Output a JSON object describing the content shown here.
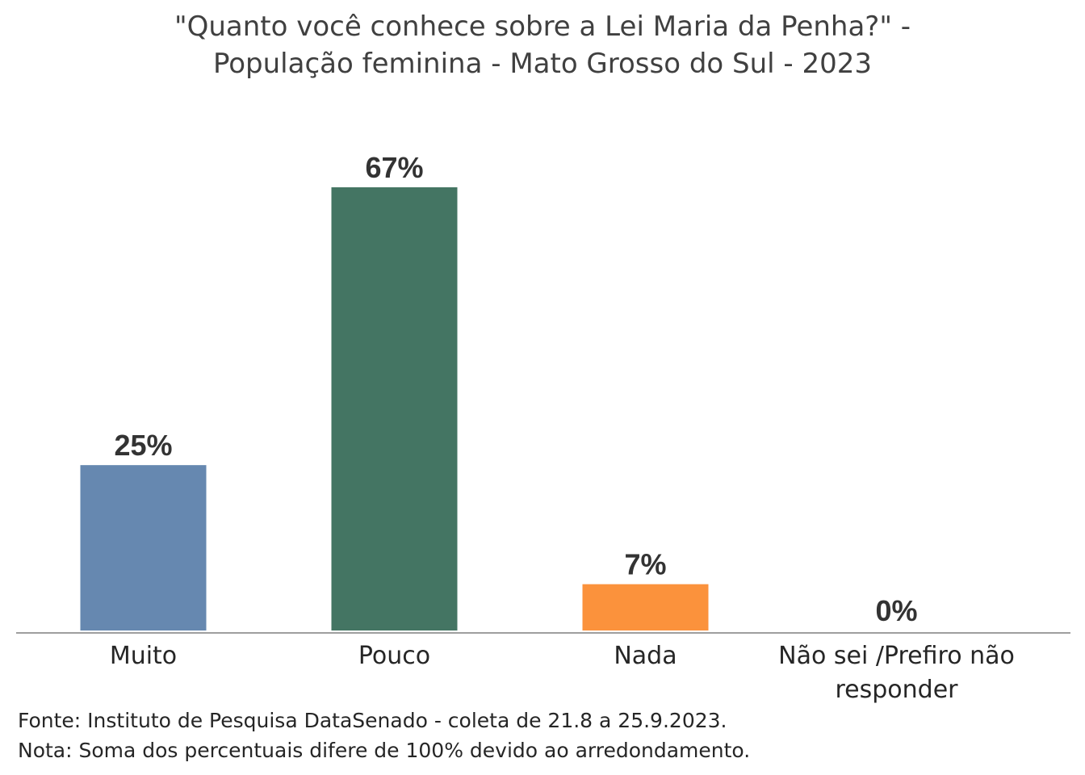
{
  "chart_data": {
    "type": "bar",
    "title_lines": [
      "\"Quanto você conhece sobre a Lei Maria da Penha?\" -",
      "População feminina - Mato Grosso do Sul - 2023"
    ],
    "categories": [
      "Muito",
      "Pouco",
      "Nada",
      "Não sei /Prefiro não responder"
    ],
    "category_lines": [
      [
        "Muito"
      ],
      [
        "Pouco"
      ],
      [
        "Nada"
      ],
      [
        "Não sei /Prefiro não",
        "responder"
      ]
    ],
    "values": [
      25,
      67,
      7,
      0
    ],
    "data_labels": [
      "25%",
      "67%",
      "7%",
      "0%"
    ],
    "bar_colors": [
      "#6688B0",
      "#447563",
      "#FB923C",
      "#9E9E9E"
    ],
    "ylim": [
      0,
      67
    ],
    "y_axis_visible": false,
    "grid": false,
    "legend": "none"
  },
  "footnotes": {
    "source": "Fonte: Instituto de Pesquisa DataSenado - coleta de 21.8 a 25.9.2023.",
    "note": "Nota: Soma dos percentuais difere de 100% devido ao arredondamento."
  }
}
